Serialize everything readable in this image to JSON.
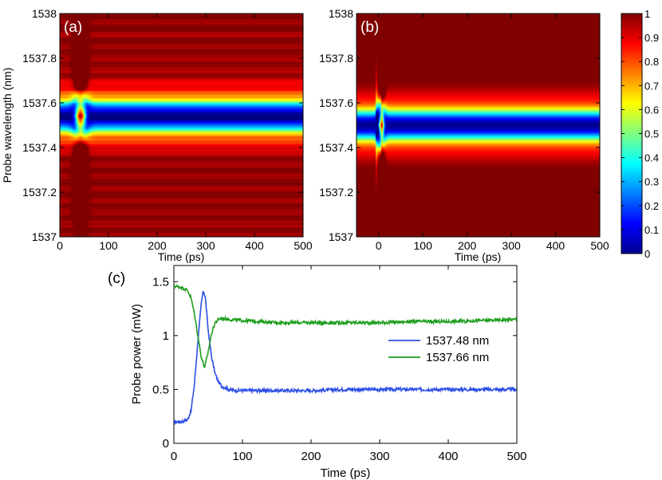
{
  "chart_data": [
    {
      "type": "heatmap",
      "panel_label": "(a)",
      "xlabel": "Time (ps)",
      "ylabel": "Probe wavelength (nm)",
      "xlim": [
        0,
        500
      ],
      "ylim": [
        1537,
        1538
      ],
      "xticks": [
        0,
        100,
        200,
        300,
        400,
        500
      ],
      "xtick_labels": [
        "0",
        "100",
        "200",
        "300",
        "400",
        "500"
      ],
      "yticks": [
        1537,
        1537.2,
        1537.4,
        1537.6,
        1537.8,
        1538
      ],
      "ytick_labels": [
        "1537",
        "1537.2",
        "1537.4",
        "1537.6",
        "1537.8",
        "1538"
      ],
      "resonance_center_nm": 1537.54,
      "resonance_halfwidth_nm": 0.075,
      "transient_time_ps": 42,
      "colormap": "jet"
    },
    {
      "type": "heatmap",
      "panel_label": "(b)",
      "xlabel": "Time (ps)",
      "ylabel": "",
      "xlim": [
        -50,
        500
      ],
      "ylim": [
        1537,
        1538
      ],
      "xticks": [
        0,
        100,
        200,
        300,
        400,
        500
      ],
      "xtick_labels": [
        "0",
        "100",
        "200",
        "300",
        "400",
        "500"
      ],
      "yticks": [
        1537,
        1537.2,
        1537.4,
        1537.6,
        1537.8,
        1538
      ],
      "ytick_labels": [
        "1537",
        "1537.2",
        "1537.4",
        "1537.6",
        "1537.8",
        "1538"
      ],
      "resonance_center_nm": 1537.5,
      "resonance_halfwidth_nm": 0.075,
      "transient_time_ps": 5,
      "colormap": "jet"
    },
    {
      "type": "colorbar",
      "range": [
        0,
        1
      ],
      "ticks": [
        0,
        0.1,
        0.2,
        0.3,
        0.4,
        0.5,
        0.6,
        0.7,
        0.8,
        0.9,
        1
      ],
      "tick_labels": [
        "0",
        "0.1",
        "0.2",
        "0.3",
        "0.4",
        "0.5",
        "0.6",
        "0.7",
        "0.8",
        "0.9",
        "1"
      ]
    },
    {
      "type": "line",
      "panel_label": "(c)",
      "xlabel": "Time (ps)",
      "ylabel": "Probe power (mW)",
      "xlim": [
        0,
        500
      ],
      "ylim": [
        0,
        1.65
      ],
      "xticks": [
        0,
        100,
        200,
        300,
        400,
        500
      ],
      "xtick_labels": [
        "0",
        "100",
        "200",
        "300",
        "400",
        "500"
      ],
      "yticks": [
        0,
        0.5,
        1,
        1.5
      ],
      "ytick_labels": [
        "0",
        "0.5",
        "1",
        "1.5"
      ],
      "legend_position": "right",
      "series": [
        {
          "name": "1537.48 nm",
          "color": "#2e4fe6",
          "x": [
            0,
            10,
            20,
            25,
            30,
            35,
            40,
            43,
            46,
            50,
            55,
            60,
            65,
            70,
            80,
            90,
            100,
            150,
            200,
            250,
            300,
            350,
            400,
            450,
            500
          ],
          "y": [
            0.2,
            0.2,
            0.22,
            0.3,
            0.55,
            0.95,
            1.3,
            1.42,
            1.35,
            1.05,
            0.8,
            0.65,
            0.57,
            0.53,
            0.5,
            0.49,
            0.49,
            0.49,
            0.49,
            0.5,
            0.5,
            0.5,
            0.5,
            0.5,
            0.5
          ]
        },
        {
          "name": "1537.66 nm",
          "color": "#1f9e1f",
          "x": [
            0,
            10,
            20,
            25,
            30,
            35,
            40,
            45,
            50,
            55,
            60,
            65,
            70,
            80,
            100,
            150,
            200,
            250,
            300,
            350,
            400,
            450,
            500
          ],
          "y": [
            1.46,
            1.45,
            1.42,
            1.35,
            1.2,
            1.0,
            0.8,
            0.7,
            0.85,
            1.02,
            1.12,
            1.15,
            1.16,
            1.15,
            1.14,
            1.12,
            1.12,
            1.12,
            1.12,
            1.13,
            1.13,
            1.14,
            1.15
          ]
        }
      ]
    }
  ]
}
